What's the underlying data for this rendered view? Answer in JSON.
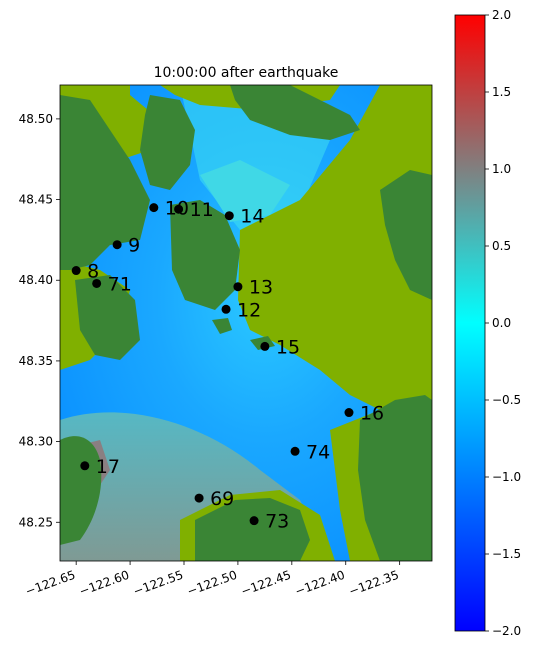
{
  "title": "10:00:00 after earthquake",
  "map": {
    "lon_range": [
      -122.665,
      -122.32
    ],
    "lat_range": [
      48.226,
      48.521
    ],
    "lon_ticks": [
      {
        "value": -122.65,
        "label": "−122.65"
      },
      {
        "value": -122.6,
        "label": "−122.60"
      },
      {
        "value": -122.55,
        "label": "−122.55"
      },
      {
        "value": -122.5,
        "label": "−122.50"
      },
      {
        "value": -122.45,
        "label": "−122.45"
      },
      {
        "value": -122.4,
        "label": "−122.40"
      },
      {
        "value": -122.35,
        "label": "−122.35"
      }
    ],
    "lat_ticks": [
      {
        "value": 48.5,
        "label": "48.50"
      },
      {
        "value": 48.45,
        "label": "48.45"
      },
      {
        "value": 48.4,
        "label": "48.40"
      },
      {
        "value": 48.35,
        "label": "48.35"
      },
      {
        "value": 48.3,
        "label": "48.30"
      },
      {
        "value": 48.25,
        "label": "48.25"
      }
    ],
    "land_color": "#3a8535",
    "lowland_color": "#80b000"
  },
  "gauges": [
    {
      "id": "10",
      "lon": -122.578,
      "lat": 48.445
    },
    {
      "id": "11",
      "lon": -122.555,
      "lat": 48.444
    },
    {
      "id": "14",
      "lon": -122.508,
      "lat": 48.44
    },
    {
      "id": "9",
      "lon": -122.612,
      "lat": 48.422
    },
    {
      "id": "8",
      "lon": -122.65,
      "lat": 48.406
    },
    {
      "id": "71",
      "lon": -122.631,
      "lat": 48.398
    },
    {
      "id": "13",
      "lon": -122.5,
      "lat": 48.396
    },
    {
      "id": "12",
      "lon": -122.511,
      "lat": 48.382
    },
    {
      "id": "15",
      "lon": -122.475,
      "lat": 48.359
    },
    {
      "id": "16",
      "lon": -122.397,
      "lat": 48.318
    },
    {
      "id": "74",
      "lon": -122.447,
      "lat": 48.294
    },
    {
      "id": "17",
      "lon": -122.642,
      "lat": 48.285
    },
    {
      "id": "69",
      "lon": -122.536,
      "lat": 48.265
    },
    {
      "id": "73",
      "lon": -122.485,
      "lat": 48.251
    }
  ],
  "colorbar": {
    "min": -2.0,
    "max": 2.0,
    "ticks": [
      {
        "value": 2.0,
        "label": "2.0"
      },
      {
        "value": 1.5,
        "label": "1.5"
      },
      {
        "value": 1.0,
        "label": "1.0"
      },
      {
        "value": 0.5,
        "label": "0.5"
      },
      {
        "value": 0.0,
        "label": "0.0"
      },
      {
        "value": -0.5,
        "label": "−0.5"
      },
      {
        "value": -1.0,
        "label": "−1.0"
      },
      {
        "value": -1.5,
        "label": "−1.5"
      },
      {
        "value": -2.0,
        "label": "−2.0"
      }
    ],
    "colors": [
      "#0000ff",
      "#00ffff",
      "#808080",
      "#ff0000"
    ]
  }
}
